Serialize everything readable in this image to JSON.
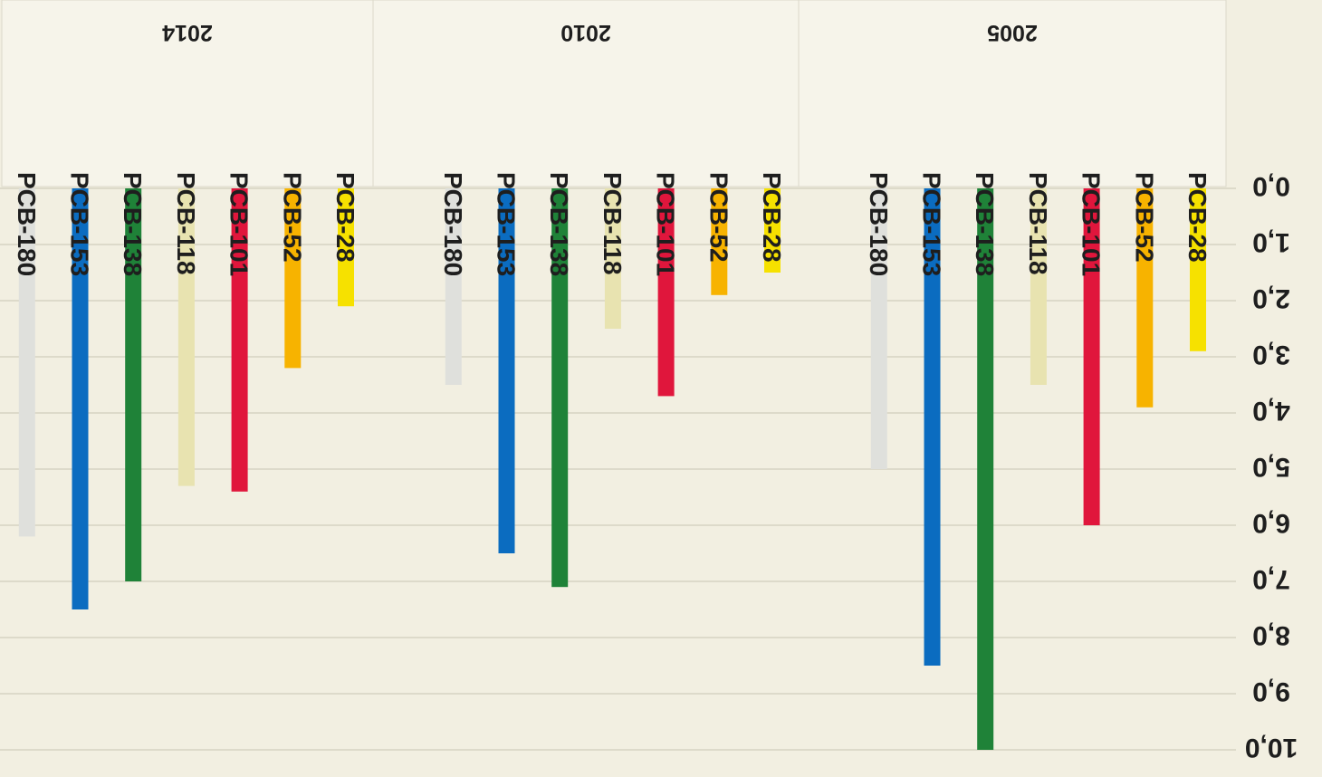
{
  "chart_data": {
    "type": "bar",
    "orientation": "vertical-inverted-rotated-180",
    "categories": [
      "PCB-28",
      "PCB-52",
      "PCB-101",
      "PCB-118",
      "PCB-138",
      "PCB-153",
      "PCB-180"
    ],
    "groups": [
      {
        "label": "2005",
        "values": [
          2.9,
          3.9,
          6.0,
          3.5,
          10.0,
          8.5,
          5.0
        ]
      },
      {
        "label": "2010",
        "values": [
          1.5,
          1.9,
          3.7,
          2.5,
          7.1,
          6.5,
          3.5
        ]
      },
      {
        "label": "2014",
        "values": [
          2.1,
          3.2,
          5.4,
          5.3,
          7.0,
          7.5,
          6.2
        ]
      }
    ],
    "colors": {
      "PCB-28": "#f6e100",
      "PCB-52": "#f7b300",
      "PCB-101": "#e0163c",
      "PCB-118": "#e8e3b0",
      "PCB-138": "#1f8238",
      "PCB-153": "#0b6cc0",
      "PCB-180": "#dfe0dc"
    },
    "yaxis": {
      "range": [
        0,
        10
      ],
      "ticks": [
        "0,0",
        "1,0",
        "2,0",
        "3,0",
        "4,0",
        "5,0",
        "6,0",
        "7,0",
        "8,0",
        "9,0",
        "10,0"
      ]
    },
    "grid": true,
    "title": "",
    "xlabel": "",
    "ylabel": ""
  }
}
